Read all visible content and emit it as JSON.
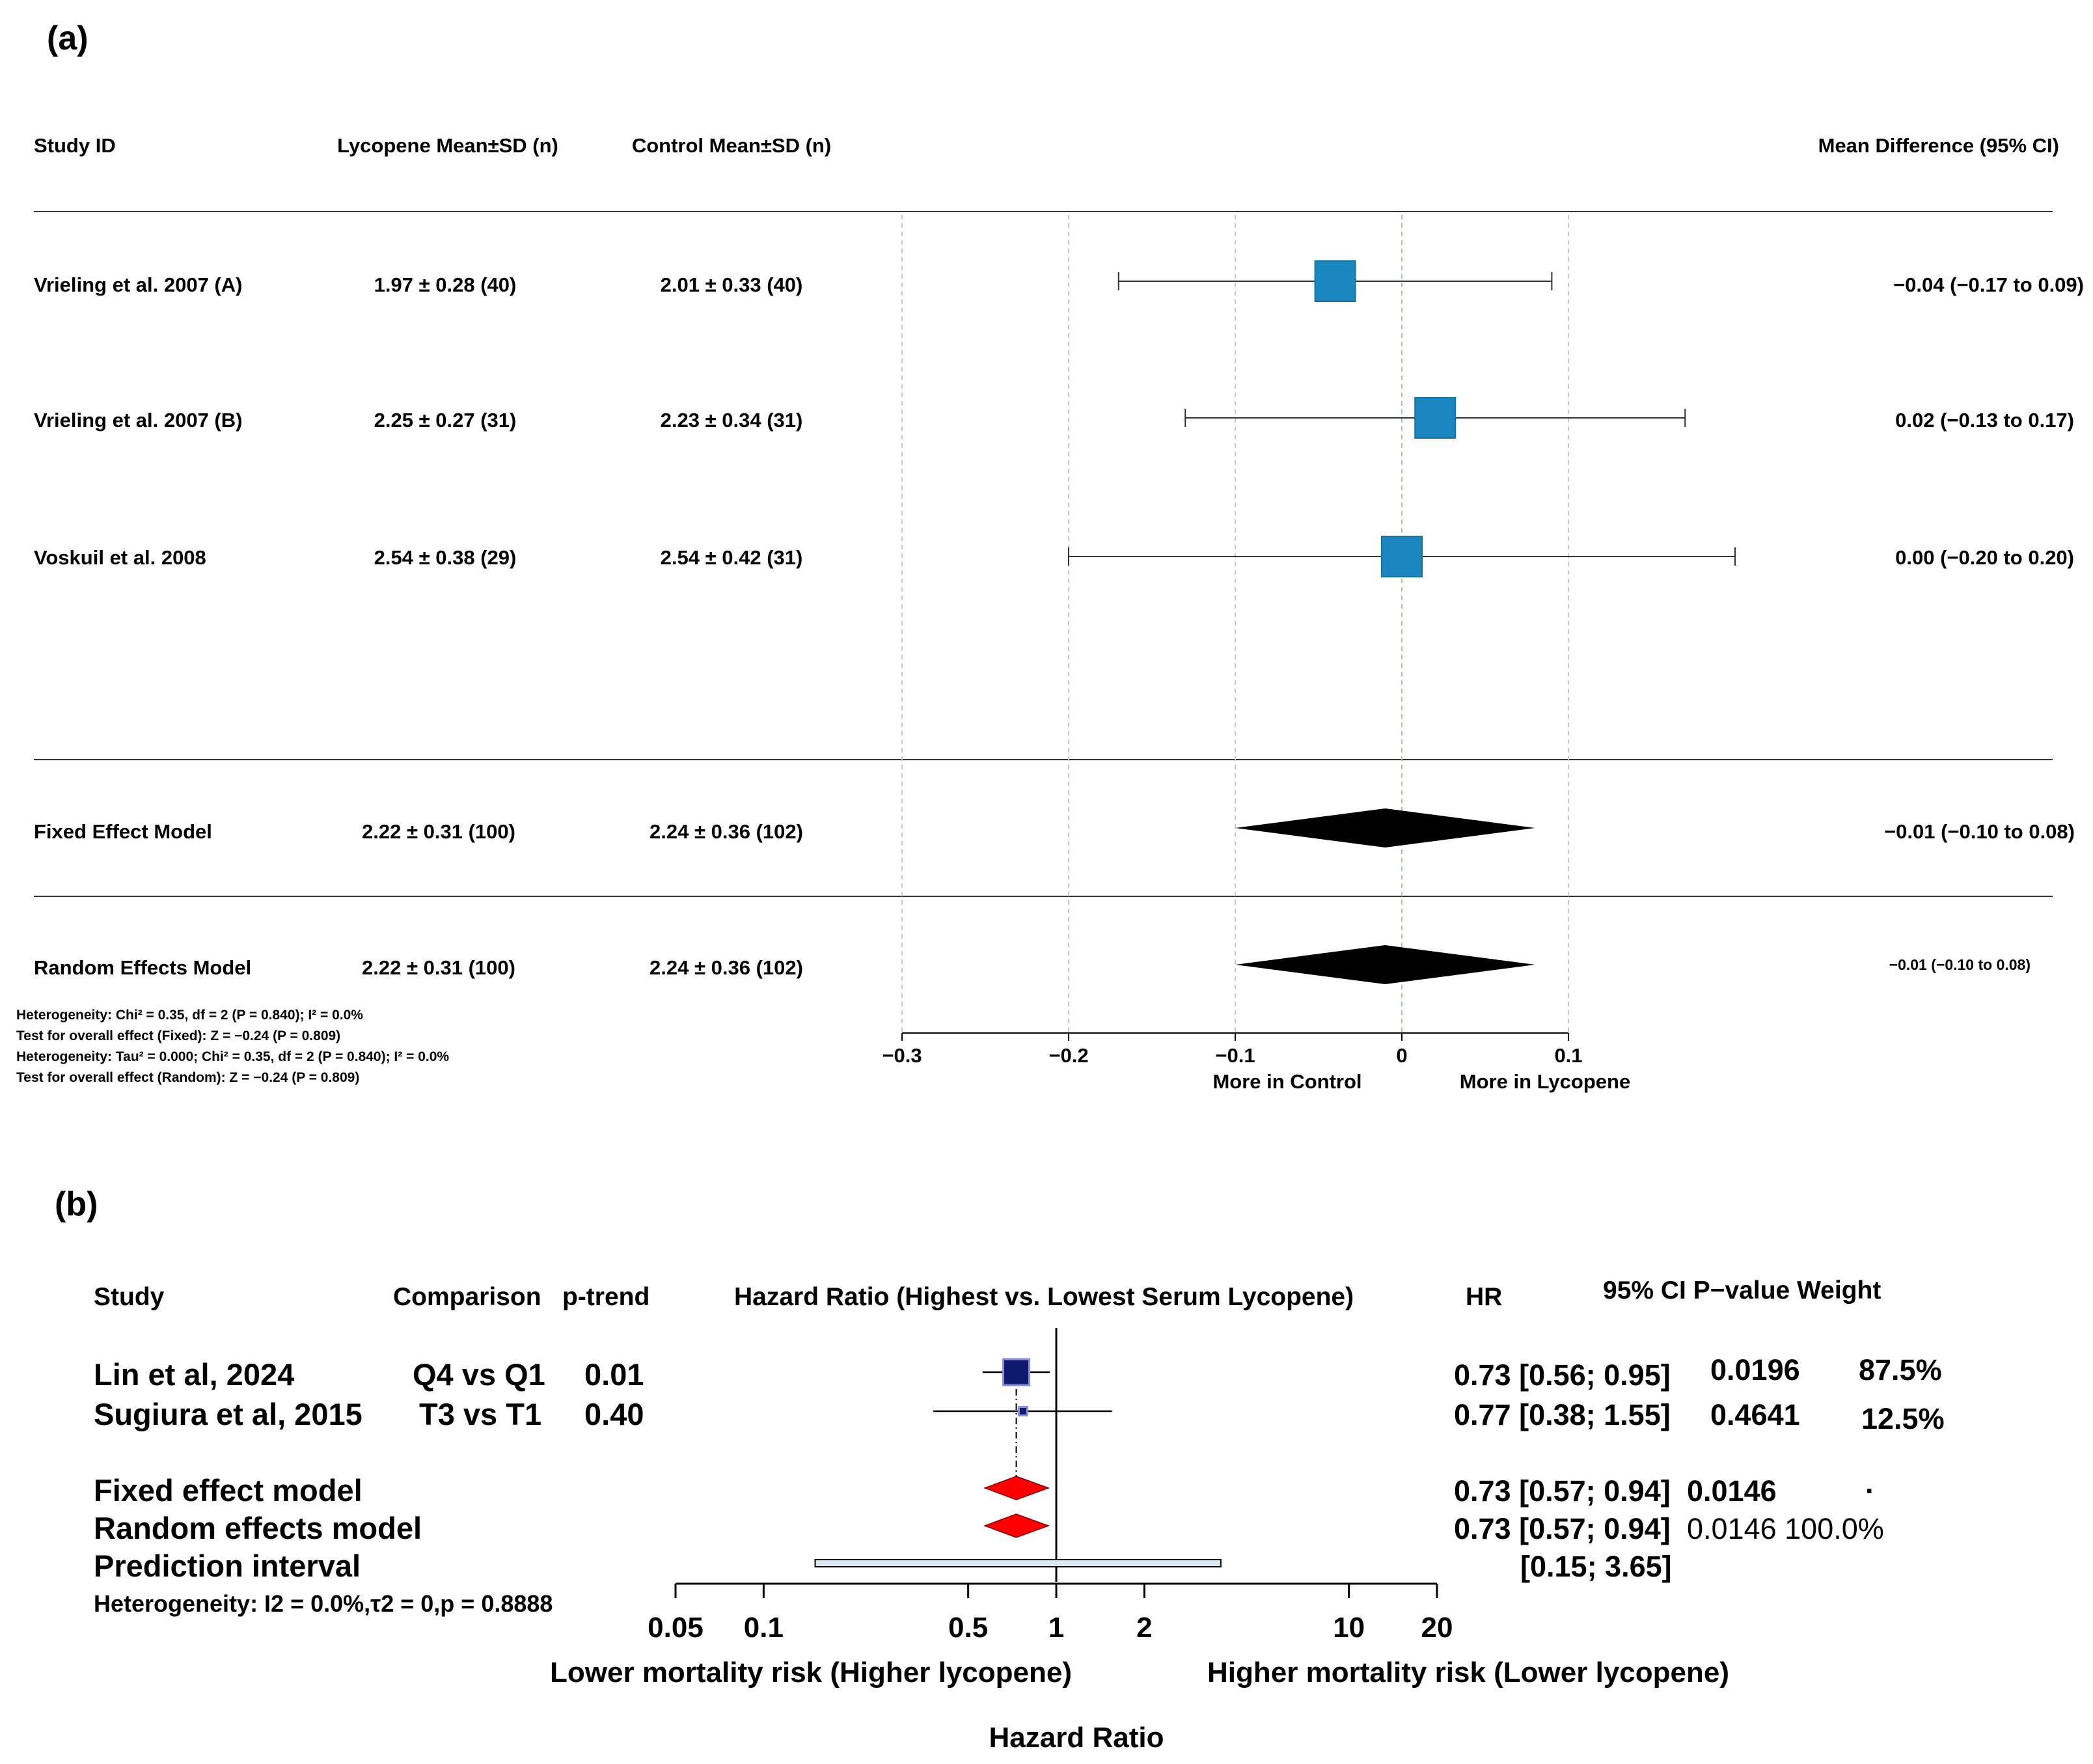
{
  "panel_a": {
    "label": "(a)",
    "headers": {
      "study": "Study ID",
      "lycopene": "Lycopene Mean±SD (n)",
      "control": "Control Mean±SD (n)",
      "md": "Mean Difference (95% CI)"
    },
    "rows": [
      {
        "study": "Vrieling et al. 2007 (A)",
        "lycopene": "1.97 ± 0.28 (40)",
        "control": "2.01 ± 0.33 (40)",
        "ci_text": "−0.04 (−0.17 to 0.09)"
      },
      {
        "study": "Vrieling et al. 2007 (B)",
        "lycopene": "2.25 ± 0.27 (31)",
        "control": "2.23 ± 0.34 (31)",
        "ci_text": "0.02 (−0.13 to 0.17)"
      },
      {
        "study": "Voskuil et al. 2008",
        "lycopene": "2.54 ± 0.38 (29)",
        "control": "2.54 ± 0.42 (31)",
        "ci_text": "0.00 (−0.20 to 0.20)"
      }
    ],
    "summaries": [
      {
        "name": "Fixed Effect Model",
        "lycopene": "2.22 ± 0.31 (100)",
        "control": "2.24 ± 0.36 (102)",
        "ci_text": "−0.01 (−0.10 to 0.08)"
      },
      {
        "name": "Random Effects Model",
        "lycopene": "2.22 ± 0.31 (100)",
        "control": "2.24 ± 0.36 (102)",
        "ci_text": "−0.01 (−0.10 to 0.08)"
      }
    ],
    "footnotes": [
      "Heterogeneity: Chi² = 0.35, df = 2 (P = 0.840); I² = 0.0%",
      "Test for overall effect (Fixed): Z = −0.24 (P = 0.809)",
      "Heterogeneity: Tau² = 0.000; Chi² = 0.35, df = 2 (P = 0.840); I² = 0.0%",
      "Test for overall effect (Random): Z = −0.24 (P = 0.809)"
    ],
    "axis_ticks": [
      "−0.3",
      "−0.2",
      "−0.1",
      "0",
      "0.1"
    ],
    "favors_left": "More in Control",
    "favors_right": "More in Lycopene",
    "square_color": "#1b87c0"
  },
  "panel_b": {
    "label": "(b)",
    "headers": {
      "study": "Study",
      "comparison": "Comparison",
      "ptrend": "p-trend",
      "plot_title": "Hazard Ratio (Highest vs. Lowest Serum Lycopene)",
      "hr": "HR",
      "ci_p_weight": "95% CI P−value Weight"
    },
    "rows": [
      {
        "study": "Lin et al, 2024",
        "comparison": "Q4 vs Q1",
        "ptrend": "0.01",
        "hr_ci": "0.73 [0.56; 0.95]",
        "pvalue": "0.0196",
        "weight": "87.5%"
      },
      {
        "study": "Sugiura et al, 2015",
        "comparison": "T3 vs T1",
        "ptrend": "0.40",
        "hr_ci": "0.77 [0.38; 1.55]",
        "pvalue": "0.4641",
        "weight": "12.5%"
      }
    ],
    "summaries": [
      {
        "name": "Fixed effect model",
        "hr_ci": "0.73 [0.57; 0.94]",
        "pvalue_weight": "0.0146",
        "dot": "·"
      },
      {
        "name": "Random effects model",
        "hr_ci": "0.73 [0.57; 0.94]",
        "pvalue_weight": "0.0146 100.0%"
      }
    ],
    "prediction": {
      "name": "Prediction interval",
      "ci": "[0.15; 3.65]"
    },
    "heterogeneity": "Heterogeneity: I2 = 0.0%,τ2 = 0,p = 0.8888",
    "axis_ticks": [
      "0.05",
      "0.1",
      "0.5",
      "1",
      "2",
      "10",
      "20"
    ],
    "favors_left": "Lower mortality risk (Higher lycopene)",
    "favors_right": "Higher mortality risk (Lower lycopene)",
    "xlabel": "Hazard Ratio",
    "square_color": "#0d1a6e",
    "diamond_color": "#ff0000",
    "pi_color": "#d9eaf3"
  },
  "chart_data": [
    {
      "type": "forest",
      "title": "(a)",
      "measure": "Mean Difference (95% CI)",
      "xlim": [
        -0.3,
        0.1
      ],
      "xticks": [
        -0.3,
        -0.2,
        -0.1,
        0,
        0.1
      ],
      "null_value": 0,
      "studies": [
        {
          "name": "Vrieling et al. 2007 (A)",
          "estimate": -0.04,
          "lower": -0.17,
          "upper": 0.09
        },
        {
          "name": "Vrieling et al. 2007 (B)",
          "estimate": 0.02,
          "lower": -0.13,
          "upper": 0.17
        },
        {
          "name": "Voskuil et al. 2008",
          "estimate": 0.0,
          "lower": -0.2,
          "upper": 0.2
        }
      ],
      "pooled": [
        {
          "name": "Fixed Effect Model",
          "estimate": -0.01,
          "lower": -0.1,
          "upper": 0.08
        },
        {
          "name": "Random Effects Model",
          "estimate": -0.01,
          "lower": -0.1,
          "upper": 0.08
        }
      ]
    },
    {
      "type": "forest",
      "title": "(b)",
      "measure": "Hazard Ratio",
      "scale": "log",
      "xlim": [
        0.05,
        20
      ],
      "xticks": [
        0.05,
        0.1,
        0.5,
        1,
        2,
        10,
        20
      ],
      "null_value": 1,
      "studies": [
        {
          "name": "Lin et al, 2024",
          "estimate": 0.73,
          "lower": 0.56,
          "upper": 0.95,
          "weight": 87.5
        },
        {
          "name": "Sugiura et al, 2015",
          "estimate": 0.77,
          "lower": 0.38,
          "upper": 1.55,
          "weight": 12.5
        }
      ],
      "pooled": [
        {
          "name": "Fixed effect model",
          "estimate": 0.73,
          "lower": 0.57,
          "upper": 0.94
        },
        {
          "name": "Random effects model",
          "estimate": 0.73,
          "lower": 0.57,
          "upper": 0.94
        }
      ],
      "prediction_interval": {
        "lower": 0.15,
        "upper": 3.65
      }
    }
  ]
}
